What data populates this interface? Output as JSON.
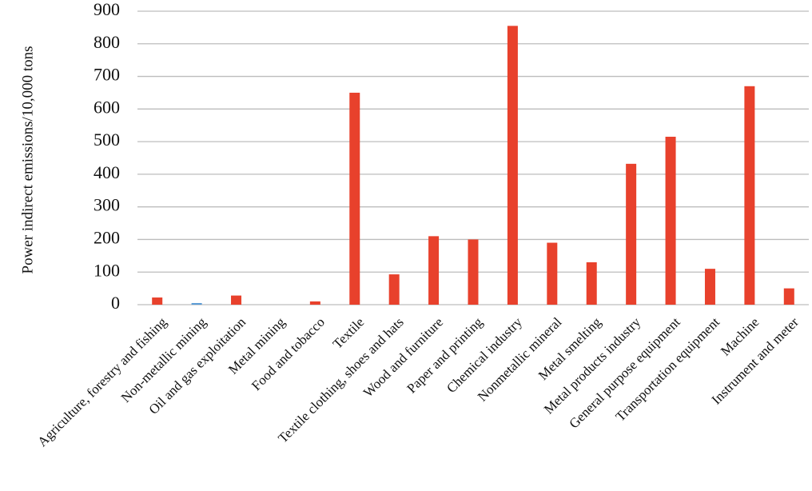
{
  "chart_data": {
    "type": "bar",
    "y_label": "Power indirect emissions/10,000 tons",
    "categories": [
      "Agriculture, forestry and fishing",
      "Non-metallic mining",
      "Oil and gas exploitation",
      "Metal mining",
      "Food and tobacco",
      "Textile",
      "Textile clothing, shoes and hats",
      "Wood and furniture",
      "Paper and printing",
      "Chemical industry",
      "Nonmetallic mineral",
      "Metal smelting",
      "Metal products industry",
      "General purpose equipment",
      "Transportation equipment",
      "Machine",
      "Instrument and meter"
    ],
    "values": [
      22,
      5,
      28,
      0,
      10,
      650,
      93,
      210,
      200,
      855,
      190,
      130,
      432,
      515,
      110,
      670,
      50
    ],
    "colors": [
      "#e8412c",
      "#5b9bd5",
      "#e8412c",
      "#e8412c",
      "#e8412c",
      "#e8412c",
      "#e8412c",
      "#e8412c",
      "#e8412c",
      "#e8412c",
      "#e8412c",
      "#e8412c",
      "#e8412c",
      "#e8412c",
      "#e8412c",
      "#e8412c",
      "#e8412c"
    ],
    "ylim": [
      0,
      900
    ],
    "yticks": [
      0,
      100,
      200,
      300,
      400,
      500,
      600,
      700,
      800,
      900
    ],
    "grid": true
  }
}
